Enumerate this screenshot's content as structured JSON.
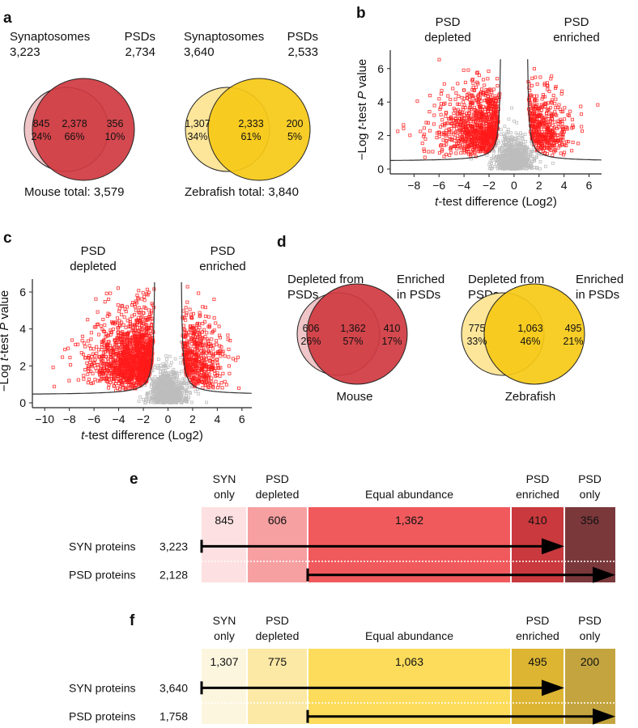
{
  "panels": {
    "a": "a",
    "b": "b",
    "c": "c",
    "d": "d",
    "e": "e",
    "f": "f"
  },
  "colors": {
    "mouse_light": "#efc5c7",
    "mouse_dark": "#cf3a40",
    "fish_light": "#fde69a",
    "fish_dark": "#f6c916",
    "sig": "#ff1a1a",
    "nonsig": "#bdbdbd"
  },
  "chart_data": [
    {
      "type": "venn",
      "panel": "a",
      "subtitle": "Mouse",
      "left_label": "Synaptosomes",
      "left_total": "3,223",
      "right_label": "PSDs",
      "right_total": "2,734",
      "regions": [
        {
          "count": "845",
          "pct": "24%"
        },
        {
          "count": "2,378",
          "pct": "66%"
        },
        {
          "count": "356",
          "pct": "10%"
        }
      ],
      "total_label": "Mouse total: 3,579"
    },
    {
      "type": "venn",
      "panel": "a",
      "subtitle": "Zebrafish",
      "left_label": "Synaptosomes",
      "left_total": "3,640",
      "right_label": "PSDs",
      "right_total": "2,533",
      "regions": [
        {
          "count": "1,307",
          "pct": "34%"
        },
        {
          "count": "2,333",
          "pct": "61%"
        },
        {
          "count": "200",
          "pct": "5%"
        }
      ],
      "total_label": "Zebrafish total: 3,840"
    },
    {
      "type": "scatter",
      "panel": "b",
      "xlabel_italic": "t",
      "xlabel_rest": "-test difference (Log2)",
      "ylabel_pre": "−Log ",
      "ylabel_t": "t",
      "ylabel_mid": "-test ",
      "ylabel_p": "P",
      "ylabel_post": " value",
      "xlim": [
        -9.9,
        7
      ],
      "ylim": [
        0,
        7.1
      ],
      "xticks": [
        "−8",
        "−6",
        "−4",
        "−2",
        "0",
        "2",
        "4",
        "6"
      ],
      "xtick_values": [
        -8,
        -6,
        -4,
        -2,
        0,
        2,
        4,
        6
      ],
      "yticks": [
        "0",
        "2",
        "4",
        "6"
      ],
      "ytick_values": [
        0,
        2,
        4,
        6
      ],
      "annot_left": [
        "PSD",
        "depleted"
      ],
      "annot_right": [
        "PSD",
        "enriched"
      ],
      "threshold_s0": 1,
      "baseline": 0.45,
      "n_left": 900,
      "n_right": 450,
      "n_nonsig": 700,
      "seed": 7
    },
    {
      "type": "scatter",
      "panel": "c",
      "xlabel_italic": "t",
      "xlabel_rest": "-test difference (Log2)",
      "ylabel_pre": "−Log ",
      "ylabel_t": "t",
      "ylabel_mid": "-test ",
      "ylabel_p": "P",
      "ylabel_post": " value",
      "xlim": [
        -11,
        6.8
      ],
      "ylim": [
        0,
        6.7
      ],
      "xticks": [
        "−10",
        "−8",
        "−6",
        "−4",
        "−2",
        "0",
        "2",
        "4",
        "6"
      ],
      "xtick_values": [
        -10,
        -8,
        -6,
        -4,
        -2,
        0,
        2,
        4,
        6
      ],
      "yticks": [
        "0",
        "2",
        "4",
        "6"
      ],
      "ytick_values": [
        0,
        2,
        4,
        6
      ],
      "annot_left": [
        "PSD",
        "depleted"
      ],
      "annot_right": [
        "PSD",
        "enriched"
      ],
      "threshold_s0": 1,
      "baseline": 0.42,
      "n_left": 1400,
      "n_right": 500,
      "n_nonsig": 700,
      "seed": 13
    },
    {
      "type": "venn",
      "panel": "d",
      "subtitle": "Mouse",
      "left_label": [
        "Depleted from",
        "PSDs"
      ],
      "right_label": [
        "Enriched",
        "in PSDs"
      ],
      "regions": [
        {
          "count": "606",
          "pct": "26%"
        },
        {
          "count": "1,362",
          "pct": "57%"
        },
        {
          "count": "410",
          "pct": "17%"
        }
      ]
    },
    {
      "type": "venn",
      "panel": "d",
      "subtitle": "Zebrafish",
      "left_label": [
        "Depleted from",
        "PSDs"
      ],
      "right_label": [
        "Enriched",
        "in PSDs"
      ],
      "regions": [
        {
          "count": "775",
          "pct": "33%"
        },
        {
          "count": "1,063",
          "pct": "46%"
        },
        {
          "count": "495",
          "pct": "21%"
        }
      ]
    },
    {
      "type": "bar",
      "panel": "e",
      "categories": [
        [
          "SYN",
          "only"
        ],
        [
          "PSD",
          "depleted"
        ],
        [
          "Equal abundance"
        ],
        [
          "PSD",
          "enriched"
        ],
        [
          "PSD",
          "only"
        ]
      ],
      "values": [
        "845",
        "606",
        "1,362",
        "410",
        "356"
      ],
      "colors": [
        "#fde0e1",
        "#f6a0a2",
        "#f15a5d",
        "#c9393d",
        "#7b383b"
      ],
      "rows": [
        {
          "label": "SYN proteins",
          "value": "3,223"
        },
        {
          "label": "PSD proteins",
          "value": "2,128"
        }
      ]
    },
    {
      "type": "bar",
      "panel": "f",
      "categories": [
        [
          "SYN",
          "only"
        ],
        [
          "PSD",
          "depleted"
        ],
        [
          "Equal abundance"
        ],
        [
          "PSD",
          "enriched"
        ],
        [
          "PSD",
          "only"
        ]
      ],
      "values": [
        "1,307",
        "775",
        "1,063",
        "495",
        "200"
      ],
      "colors": [
        "#fdf6de",
        "#fde9a6",
        "#fcdc5a",
        "#ddb532",
        "#c4a43f"
      ],
      "rows": [
        {
          "label": "SYN proteins",
          "value": "3,640"
        },
        {
          "label": "PSD proteins",
          "value": "1,758"
        }
      ]
    }
  ]
}
